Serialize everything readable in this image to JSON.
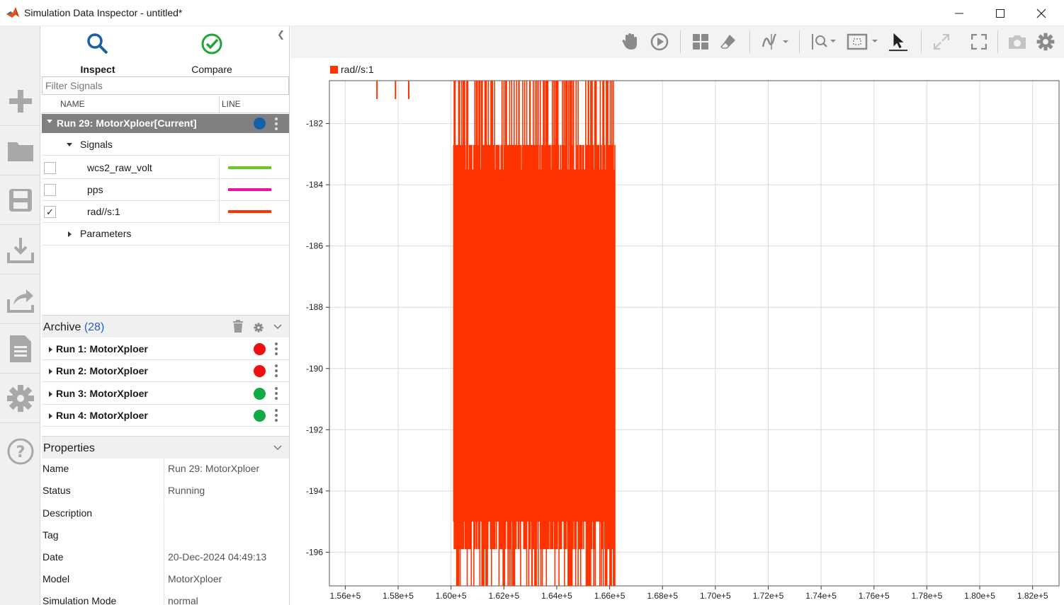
{
  "window": {
    "title": "Simulation Data Inspector - untitled*"
  },
  "modes": [
    {
      "label": "Inspect",
      "active": true
    },
    {
      "label": "Compare",
      "active": false
    }
  ],
  "filter": {
    "placeholder": "Filter Signals"
  },
  "columns": {
    "name": "NAME",
    "line": "LINE"
  },
  "current_run": {
    "label": "Run 29: MotorXploer[Current]",
    "color": "#1460a8",
    "groups": {
      "signals_label": "Signals",
      "signals": [
        {
          "name": "wcs2_raw_volt",
          "checked": false,
          "color": "#66cc22"
        },
        {
          "name": "pps",
          "checked": false,
          "color": "#ee1199"
        },
        {
          "name": "rad//s:1",
          "checked": true,
          "color": "#ff3300"
        }
      ],
      "parameters_label": "Parameters"
    }
  },
  "archive": {
    "title": "Archive",
    "count": "(28)",
    "runs": [
      {
        "label": "Run 1: MotorXploer",
        "color": "#ee1111"
      },
      {
        "label": "Run 2: MotorXploer",
        "color": "#ee1111"
      },
      {
        "label": "Run 3: MotorXploer",
        "color": "#11aa44"
      },
      {
        "label": "Run 4: MotorXploer",
        "color": "#11aa44"
      }
    ]
  },
  "properties": {
    "title": "Properties",
    "rows": [
      {
        "key": "Name",
        "value": "Run 29: MotorXploer"
      },
      {
        "key": "Status",
        "value": "Running"
      },
      {
        "key": "Description",
        "value": ""
      },
      {
        "key": "Tag",
        "value": ""
      },
      {
        "key": "Date",
        "value": "20-Dec-2024 04:49:13"
      },
      {
        "key": "Model",
        "value": "MotorXploer"
      },
      {
        "key": "Simulation Mode",
        "value": "normal"
      }
    ]
  },
  "toolbar_icons": [
    "pan-icon",
    "play-icon",
    "layout-icon",
    "eraser-icon",
    "signal-icon",
    "zoom-icon",
    "fit-icon",
    "cursor-icon",
    "expand-icon",
    "fullscreen-icon",
    "camera-icon",
    "settings-icon"
  ],
  "chart_data": {
    "type": "line",
    "legend": [
      "rad//s:1"
    ],
    "series": [
      {
        "name": "rad//s:1",
        "color": "#ff3300",
        "segments": [
          {
            "x0": 155400,
            "x1": 160100,
            "y_min": -180.6,
            "y_max": -181.2,
            "note_points": [
              157200,
              157900,
              158400
            ]
          },
          {
            "x0": 160100,
            "x1": 166200,
            "y_min": -197.1,
            "y_max": -180.6,
            "dense_band": [
              -195.0,
              -183.5
            ]
          }
        ]
      }
    ],
    "xlim": [
      155400,
      183000
    ],
    "ylim": [
      -197.1,
      -180.6
    ],
    "x_ticks": [
      "1.56e+5",
      "1.58e+5",
      "1.60e+5",
      "1.62e+5",
      "1.64e+5",
      "1.66e+5",
      "1.68e+5",
      "1.70e+5",
      "1.72e+5",
      "1.74e+5",
      "1.76e+5",
      "1.78e+5",
      "1.80e+5",
      "1.82e+5"
    ],
    "x_tick_values": [
      156000,
      158000,
      160000,
      162000,
      164000,
      166000,
      168000,
      170000,
      172000,
      174000,
      176000,
      178000,
      180000,
      182000
    ],
    "y_ticks": [
      "-182",
      "-184",
      "-186",
      "-188",
      "-190",
      "-192",
      "-194",
      "-196"
    ],
    "y_tick_values": [
      -182,
      -184,
      -186,
      -188,
      -190,
      -192,
      -194,
      -196
    ],
    "grid": true
  }
}
